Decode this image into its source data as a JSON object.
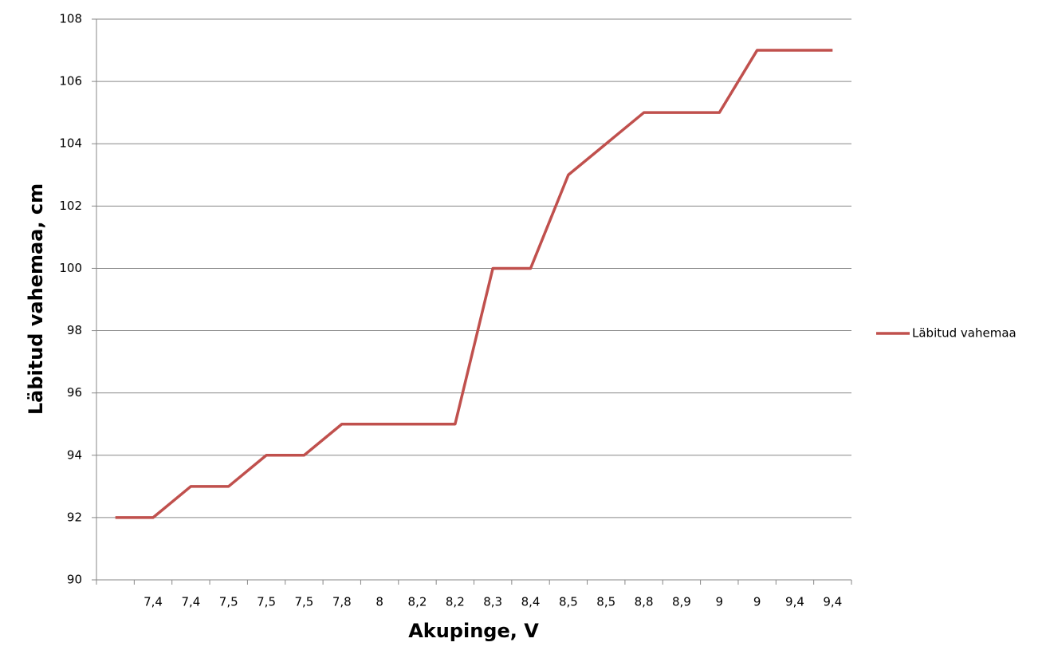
{
  "chart_data": {
    "type": "line",
    "x_label": "Akupinge, V",
    "y_label": "Läbitud vahemaa, cm",
    "categories": [
      null,
      "7,4",
      "7,4",
      "7,5",
      "7,5",
      "7,5",
      "7,8",
      "8",
      "8,2",
      "8,2",
      "8,3",
      "8,4",
      "8,5",
      "8,5",
      "8,8",
      "8,9",
      "9",
      "9",
      "9,4",
      "9,4"
    ],
    "series": [
      {
        "name": "Läbitud vahemaa",
        "color": "#c0504d",
        "values": [
          92,
          92,
          93,
          93,
          94,
          94,
          95,
          95,
          95,
          95,
          100,
          100,
          103,
          104,
          105,
          105,
          105,
          107,
          107,
          107
        ]
      }
    ],
    "ylim": [
      90,
      108
    ],
    "yticks": [
      90,
      92,
      94,
      96,
      98,
      100,
      102,
      104,
      106,
      108
    ],
    "grid": true,
    "legend": "right"
  }
}
